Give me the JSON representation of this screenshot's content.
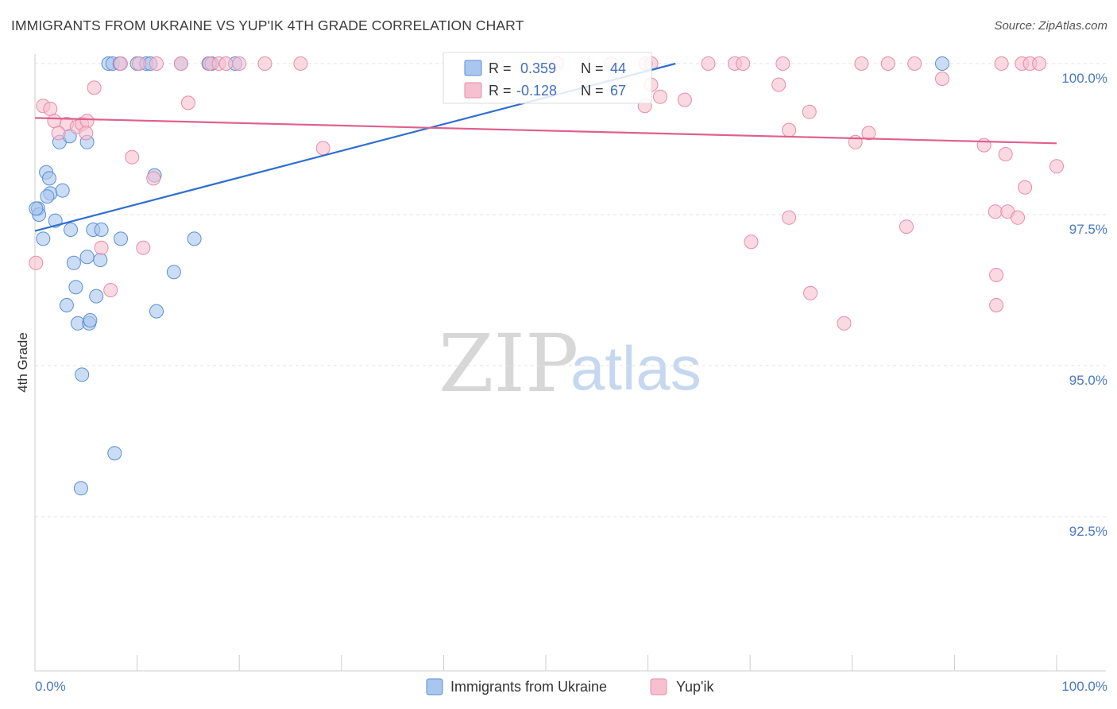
{
  "chart_data": {
    "type": "scatter",
    "title": "IMMIGRANTS FROM UKRAINE VS YUP'IK 4TH GRADE CORRELATION CHART",
    "source": "Source: ZipAtlas.com",
    "ylabel": "4th Grade",
    "xlabel": "",
    "xlim": [
      0,
      100
    ],
    "ylim": [
      90.0,
      100.25
    ],
    "x_tick_labels": [
      "0.0%",
      "100.0%"
    ],
    "y_ticks": [
      {
        "value": 100.0,
        "label": "100.0%"
      },
      {
        "value": 97.5,
        "label": "97.5%"
      },
      {
        "value": 95.0,
        "label": "95.0%"
      },
      {
        "value": 92.5,
        "label": "92.5%"
      }
    ],
    "watermark": {
      "part1": "ZIP",
      "part2": "atlas"
    },
    "legend": [
      {
        "r_label": "R = ",
        "r_value": "0.359",
        "n_label": "N = ",
        "n_value": "44"
      },
      {
        "r_label": "R = ",
        "r_value": "-0.128",
        "n_label": "N = ",
        "n_value": "67"
      }
    ],
    "series": [
      {
        "name": "Immigrants from Ukraine",
        "fill": "#a9c6ee",
        "stroke": "#5b8fd6",
        "line_color": "#2f6fcf",
        "trend": {
          "x0": 0,
          "y0": 97.23,
          "x1": 62.7,
          "y1": 100.0
        },
        "points": [
          [
            7.2,
            100.0
          ],
          [
            7.6,
            100.0
          ],
          [
            8.3,
            100.0
          ],
          [
            10.0,
            100.0
          ],
          [
            10.9,
            100.0
          ],
          [
            11.3,
            100.0
          ],
          [
            14.3,
            100.0
          ],
          [
            17.0,
            100.0
          ],
          [
            17.3,
            100.0
          ],
          [
            19.6,
            100.0
          ],
          [
            88.8,
            100.0
          ],
          [
            1.1,
            98.2
          ],
          [
            2.4,
            98.7
          ],
          [
            5.1,
            98.7
          ],
          [
            3.4,
            98.8
          ],
          [
            1.4,
            98.1
          ],
          [
            1.5,
            97.85
          ],
          [
            2.7,
            97.9
          ],
          [
            1.2,
            97.8
          ],
          [
            0.3,
            97.6
          ],
          [
            0.4,
            97.5
          ],
          [
            2.0,
            97.4
          ],
          [
            3.5,
            97.25
          ],
          [
            5.7,
            97.25
          ],
          [
            6.5,
            97.25
          ],
          [
            0.8,
            97.1
          ],
          [
            8.4,
            97.1
          ],
          [
            15.6,
            97.1
          ],
          [
            11.7,
            98.15
          ],
          [
            3.8,
            96.7
          ],
          [
            5.1,
            96.8
          ],
          [
            6.4,
            96.75
          ],
          [
            13.6,
            96.55
          ],
          [
            4.0,
            96.3
          ],
          [
            6.0,
            96.15
          ],
          [
            3.1,
            96.0
          ],
          [
            11.9,
            95.9
          ],
          [
            4.2,
            95.7
          ],
          [
            5.3,
            95.7
          ],
          [
            5.4,
            95.75
          ],
          [
            4.6,
            94.85
          ],
          [
            7.8,
            93.55
          ],
          [
            4.5,
            92.97
          ],
          [
            0.1,
            97.6
          ]
        ]
      },
      {
        "name": "Yup'ik",
        "fill": "#f6c0d0",
        "stroke": "#e88ca8",
        "line_color": "#e0608c",
        "trend": {
          "x0": 0,
          "y0": 99.1,
          "x1": 100,
          "y1": 98.68
        },
        "points": [
          [
            8.4,
            100.0
          ],
          [
            10.2,
            100.0
          ],
          [
            11.9,
            100.0
          ],
          [
            14.3,
            100.0
          ],
          [
            17.1,
            100.0
          ],
          [
            18.0,
            100.0
          ],
          [
            18.7,
            100.0
          ],
          [
            20.0,
            100.0
          ],
          [
            26.0,
            100.0
          ],
          [
            51.1,
            100.0
          ],
          [
            59.8,
            100.0
          ],
          [
            60.3,
            100.0
          ],
          [
            65.9,
            100.0
          ],
          [
            68.5,
            100.0
          ],
          [
            69.3,
            100.0
          ],
          [
            73.2,
            100.0
          ],
          [
            80.9,
            100.0
          ],
          [
            83.5,
            100.0
          ],
          [
            86.1,
            100.0
          ],
          [
            96.6,
            100.0
          ],
          [
            97.4,
            100.0
          ],
          [
            98.3,
            100.0
          ],
          [
            5.8,
            99.6
          ],
          [
            15.0,
            99.35
          ],
          [
            60.3,
            99.65
          ],
          [
            61.2,
            99.45
          ],
          [
            63.6,
            99.4
          ],
          [
            72.8,
            99.65
          ],
          [
            88.8,
            99.75
          ],
          [
            59.7,
            99.3
          ],
          [
            0.8,
            99.3
          ],
          [
            1.5,
            99.25
          ],
          [
            1.9,
            99.05
          ],
          [
            3.1,
            99.0
          ],
          [
            4.1,
            98.95
          ],
          [
            4.6,
            99.0
          ],
          [
            5.1,
            99.05
          ],
          [
            2.3,
            98.85
          ],
          [
            5.0,
            98.85
          ],
          [
            75.8,
            99.2
          ],
          [
            73.8,
            98.9
          ],
          [
            80.3,
            98.7
          ],
          [
            81.6,
            98.85
          ],
          [
            92.9,
            98.65
          ],
          [
            95.0,
            98.5
          ],
          [
            100.0,
            98.3
          ],
          [
            9.5,
            98.45
          ],
          [
            11.6,
            98.1
          ],
          [
            28.2,
            98.6
          ],
          [
            96.9,
            97.95
          ],
          [
            94.0,
            97.55
          ],
          [
            95.2,
            97.55
          ],
          [
            96.2,
            97.45
          ],
          [
            73.8,
            97.45
          ],
          [
            85.3,
            97.3
          ],
          [
            70.1,
            97.05
          ],
          [
            6.5,
            96.95
          ],
          [
            10.6,
            96.95
          ],
          [
            94.1,
            96.5
          ],
          [
            75.9,
            96.2
          ],
          [
            7.4,
            96.25
          ],
          [
            94.1,
            96.0
          ],
          [
            79.2,
            95.7
          ],
          [
            0.1,
            96.7
          ],
          [
            22.5,
            100.0
          ],
          [
            94.6,
            100.0
          ],
          [
            56.4,
            100.0
          ]
        ]
      }
    ]
  }
}
